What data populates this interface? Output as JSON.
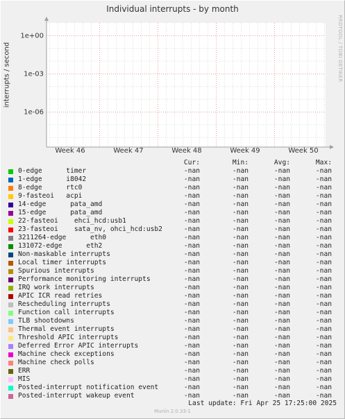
{
  "chart": {
    "title": "Individual interrupts - by month",
    "ylabel": "interrupts / second",
    "side_label": "RRDTOOL / TOBI OETIKER"
  },
  "chart_data": {
    "type": "line",
    "title": "Individual interrupts - by month",
    "ylabel": "interrupts / second",
    "yscale": "log",
    "y_ticks": [
      "1e+00",
      "1e-03",
      "1e-06"
    ],
    "y_tick_values": [
      1,
      0.001,
      1e-06
    ],
    "x_ticks": [
      "Week 46",
      "Week 47",
      "Week 48",
      "Week 49",
      "Week 50"
    ],
    "grid": true,
    "series": []
  },
  "colors": {
    "grid_major": "#e6a0a0",
    "grid_minor": "#dcdcdc",
    "axis": "#a0a0a0",
    "plot_bg": "#ffffff",
    "page_bg": "#f0f0f0"
  },
  "legend": {
    "headers": [
      "Cur:",
      "Min:",
      "Avg:",
      "Max:"
    ],
    "rows": [
      {
        "label": "0-edge      timer",
        "color": "#00cc00",
        "cur": "-nan",
        "min": "-nan",
        "avg": "-nan",
        "max": "-nan"
      },
      {
        "label": "1-edge      i8042",
        "color": "#0066b3",
        "cur": "-nan",
        "min": "-nan",
        "avg": "-nan",
        "max": "-nan"
      },
      {
        "label": "8-edge      rtc0",
        "color": "#ff8000",
        "cur": "-nan",
        "min": "-nan",
        "avg": "-nan",
        "max": "-nan"
      },
      {
        "label": "9-fasteoi   acpi",
        "color": "#ffcc00",
        "cur": "-nan",
        "min": "-nan",
        "avg": "-nan",
        "max": "-nan"
      },
      {
        "label": "14-edge      pata_amd",
        "color": "#330099",
        "cur": "-nan",
        "min": "-nan",
        "avg": "-nan",
        "max": "-nan"
      },
      {
        "label": "15-edge      pata_amd",
        "color": "#990099",
        "cur": "-nan",
        "min": "-nan",
        "avg": "-nan",
        "max": "-nan"
      },
      {
        "label": "22-fasteoi    ehci_hcd:usb1",
        "color": "#ccff00",
        "cur": "-nan",
        "min": "-nan",
        "avg": "-nan",
        "max": "-nan"
      },
      {
        "label": "23-fasteoi    sata_nv, ohci_hcd:usb2",
        "color": "#ff0000",
        "cur": "-nan",
        "min": "-nan",
        "avg": "-nan",
        "max": "-nan"
      },
      {
        "label": "3211264-edge      eth0",
        "color": "#808080",
        "cur": "-nan",
        "min": "-nan",
        "avg": "-nan",
        "max": "-nan"
      },
      {
        "label": "131072-edge      eth2",
        "color": "#008f00",
        "cur": "-nan",
        "min": "-nan",
        "avg": "-nan",
        "max": "-nan"
      },
      {
        "label": "Non-maskable interrupts",
        "color": "#00487d",
        "cur": "-nan",
        "min": "-nan",
        "avg": "-nan",
        "max": "-nan"
      },
      {
        "label": "Local timer interrupts",
        "color": "#b35a00",
        "cur": "-nan",
        "min": "-nan",
        "avg": "-nan",
        "max": "-nan"
      },
      {
        "label": "Spurious interrupts",
        "color": "#b38f00",
        "cur": "-nan",
        "min": "-nan",
        "avg": "-nan",
        "max": "-nan"
      },
      {
        "label": "Performance monitoring interrupts",
        "color": "#6b006b",
        "cur": "-nan",
        "min": "-nan",
        "avg": "-nan",
        "max": "-nan"
      },
      {
        "label": "IRQ work interrupts",
        "color": "#8fb300",
        "cur": "-nan",
        "min": "-nan",
        "avg": "-nan",
        "max": "-nan"
      },
      {
        "label": "APIC ICR read retries",
        "color": "#b30000",
        "cur": "-nan",
        "min": "-nan",
        "avg": "-nan",
        "max": "-nan"
      },
      {
        "label": "Rescheduling interrupts",
        "color": "#bebebe",
        "cur": "-nan",
        "min": "-nan",
        "avg": "-nan",
        "max": "-nan"
      },
      {
        "label": "Function call interrupts",
        "color": "#80ff80",
        "cur": "-nan",
        "min": "-nan",
        "avg": "-nan",
        "max": "-nan"
      },
      {
        "label": "TLB shootdowns",
        "color": "#80c9ff",
        "cur": "-nan",
        "min": "-nan",
        "avg": "-nan",
        "max": "-nan"
      },
      {
        "label": "Thermal event interrupts",
        "color": "#ffc080",
        "cur": "-nan",
        "min": "-nan",
        "avg": "-nan",
        "max": "-nan"
      },
      {
        "label": "Threshold APIC interrupts",
        "color": "#ffe680",
        "cur": "-nan",
        "min": "-nan",
        "avg": "-nan",
        "max": "-nan"
      },
      {
        "label": "Deferred Error APIC interrupts",
        "color": "#aa80ff",
        "cur": "-nan",
        "min": "-nan",
        "avg": "-nan",
        "max": "-nan"
      },
      {
        "label": "Machine check exceptions",
        "color": "#ee00cc",
        "cur": "-nan",
        "min": "-nan",
        "avg": "-nan",
        "max": "-nan"
      },
      {
        "label": "Machine check polls",
        "color": "#ff8080",
        "cur": "-nan",
        "min": "-nan",
        "avg": "-nan",
        "max": "-nan"
      },
      {
        "label": "ERR",
        "color": "#666600",
        "cur": "-nan",
        "min": "-nan",
        "avg": "-nan",
        "max": "-nan"
      },
      {
        "label": "MIS",
        "color": "#ffbfff",
        "cur": "-nan",
        "min": "-nan",
        "avg": "-nan",
        "max": "-nan"
      },
      {
        "label": "Posted-interrupt notification event",
        "color": "#00ffcc",
        "cur": "-nan",
        "min": "-nan",
        "avg": "-nan",
        "max": "-nan"
      },
      {
        "label": "Posted-interrupt wakeup event",
        "color": "#cc6699",
        "cur": "-nan",
        "min": "-nan",
        "avg": "-nan",
        "max": "-nan"
      }
    ]
  },
  "last_update": "Last update:  Fri Apr 25 17:25:00 2025",
  "footer": "Munin 2.0.33-1"
}
